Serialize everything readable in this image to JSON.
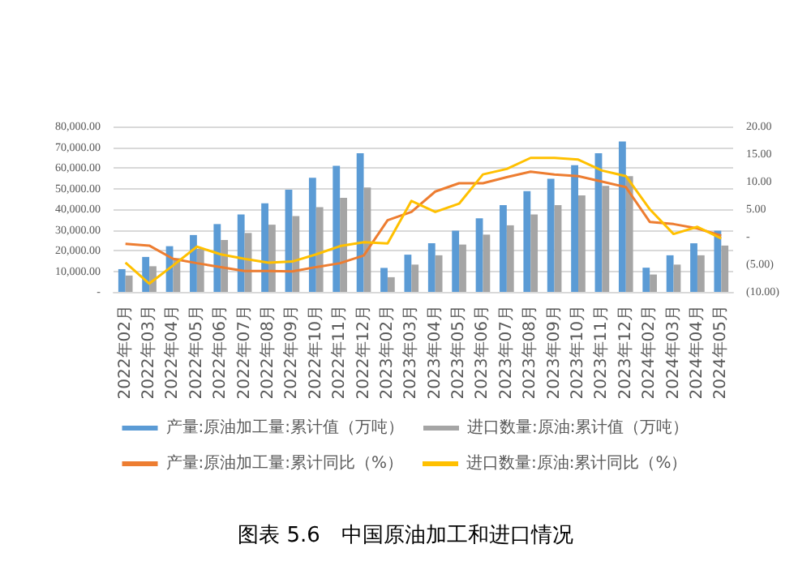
{
  "chart_data": {
    "type": "bar",
    "title": "图表 5.6　中国原油加工和进口情况",
    "categories": [
      "2022年02月",
      "2022年03月",
      "2022年04月",
      "2022年05月",
      "2022年06月",
      "2022年07月",
      "2022年08月",
      "2022年09月",
      "2022年10月",
      "2022年11月",
      "2022年12月",
      "2023年02月",
      "2023年03月",
      "2023年04月",
      "2023年05月",
      "2023年06月",
      "2023年07月",
      "2023年08月",
      "2023年09月",
      "2023年10月",
      "2023年11月",
      "2023年12月",
      "2024年02月",
      "2024年03月",
      "2024年04月",
      "2024年05月"
    ],
    "series": [
      {
        "name": "产量:原油加工量:累计值（万吨）",
        "color": "#5b9bd5",
        "values": [
          11000,
          16900,
          22100,
          27500,
          32800,
          37500,
          42800,
          49400,
          55200,
          61000,
          67100,
          11600,
          18000,
          23500,
          29600,
          35600,
          42000,
          48700,
          54700,
          61300,
          67100,
          72700,
          11700,
          17700,
          23500,
          29600
        ]
      },
      {
        "name": "进口数量:原油:累计值（万吨）",
        "color": "#a5a5a5",
        "values": [
          7900,
          12400,
          16300,
          20800,
          25100,
          28500,
          32500,
          36700,
          41000,
          45500,
          50500,
          7100,
          13200,
          17700,
          22900,
          27700,
          32200,
          37500,
          42000,
          46700,
          51300,
          56000,
          8400,
          13200,
          17700,
          22400
        ]
      },
      {
        "name": "产量:原油加工量:累计同比（%）",
        "type": "line",
        "axis": "y2",
        "color": "#ed7d31",
        "values": [
          -1.3,
          -1.6,
          -4.0,
          -4.8,
          -5.5,
          -6.2,
          -6.2,
          -6.3,
          -5.5,
          -4.8,
          -3.4,
          3.0,
          4.5,
          8.2,
          9.7,
          9.7,
          10.8,
          11.8,
          11.3,
          11.0,
          10.0,
          9.0,
          2.7,
          2.3,
          1.5,
          0.2
        ]
      },
      {
        "name": "进口数量:原油:累计同比（%）",
        "type": "line",
        "axis": "y2",
        "color": "#ffc000",
        "values": [
          -4.7,
          -8.5,
          -5.2,
          -1.8,
          -3.2,
          -4.0,
          -4.7,
          -4.5,
          -3.2,
          -1.7,
          -1.0,
          -1.2,
          6.5,
          4.5,
          6.0,
          11.3,
          12.3,
          14.3,
          14.3,
          14.0,
          12.0,
          11.0,
          5.0,
          0.5,
          1.8,
          -0.3
        ]
      }
    ],
    "ylim": [
      0,
      80000
    ],
    "yticks": [
      {
        "value": 0,
        "label": "-"
      },
      {
        "value": 10000,
        "label": "10,000.00"
      },
      {
        "value": 20000,
        "label": "20,000.00"
      },
      {
        "value": 30000,
        "label": "30,000.00"
      },
      {
        "value": 40000,
        "label": "40,000.00"
      },
      {
        "value": 50000,
        "label": "50,000.00"
      },
      {
        "value": 60000,
        "label": "60,000.00"
      },
      {
        "value": 70000,
        "label": "70,000.00"
      },
      {
        "value": 80000,
        "label": "80,000.00"
      }
    ],
    "y2lim": [
      -10,
      20
    ],
    "y2ticks": [
      {
        "value": -10,
        "label": "(10.00)"
      },
      {
        "value": -5,
        "label": "(5.00)"
      },
      {
        "value": 0,
        "label": "-"
      },
      {
        "value": 5,
        "label": "5.00"
      },
      {
        "value": 10,
        "label": "10.00"
      },
      {
        "value": 15,
        "label": "15.00"
      },
      {
        "value": 20,
        "label": "20.00"
      }
    ],
    "grid": "y",
    "legend": "bottom",
    "marker": "none",
    "line_style": "solid"
  }
}
